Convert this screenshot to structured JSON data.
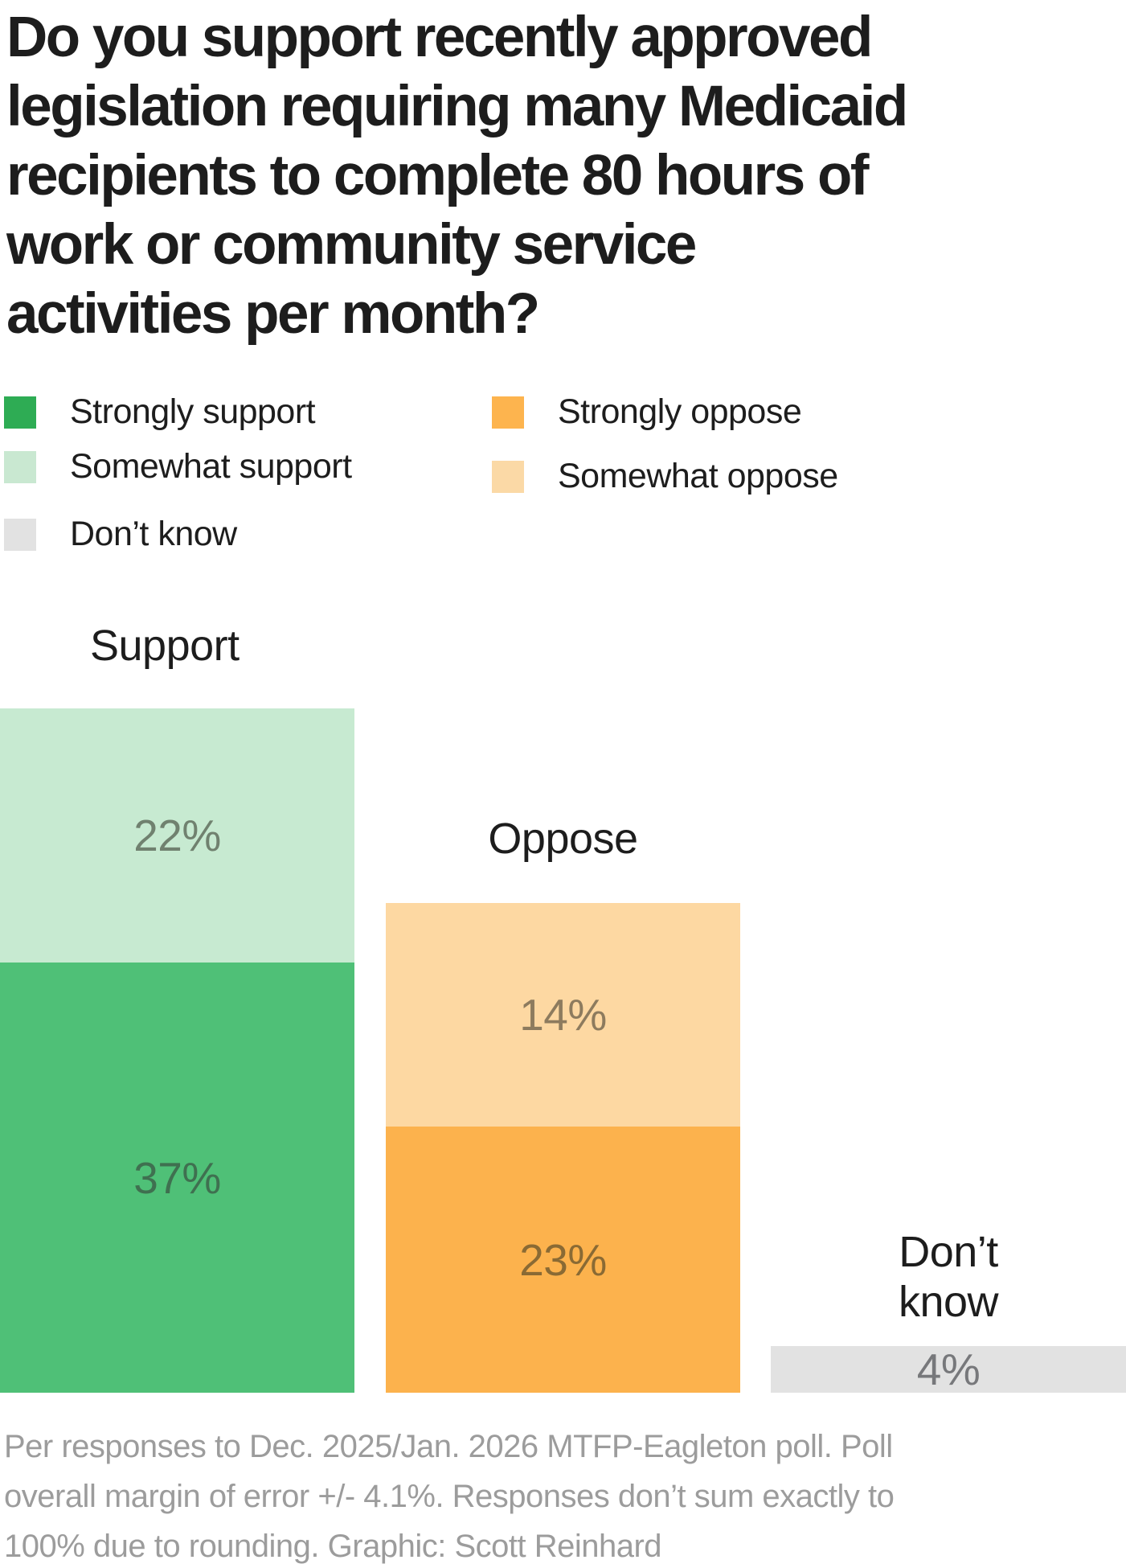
{
  "title": {
    "lines": [
      "Do you support recently approved",
      "legislation requiring many Medicaid",
      "recipients to complete 80 hours of",
      "work or community service",
      "activities per month?"
    ],
    "full_text": "Do you support recently approved legislation requiring many Medicaid recipients to complete 80 hours of work or community service activities per month?"
  },
  "legend": {
    "left": [
      {
        "label": "Strongly support",
        "color": "#2EAC54"
      },
      {
        "label": "Somewhat support",
        "color": "#C9E8D1"
      },
      {
        "label": "Don’t know",
        "color": "#E2E2E2"
      }
    ],
    "right": [
      {
        "label": "Strongly oppose",
        "color": "#FDB44E"
      },
      {
        "label": "Somewhat oppose",
        "color": "#FBD9A6"
      }
    ]
  },
  "bars": {
    "support": {
      "label": "Support",
      "segments": [
        {
          "name": "Somewhat support",
          "value_label": "22%",
          "color": "#C7EAD1",
          "label_color": "#70816F"
        },
        {
          "name": "Strongly support",
          "value_label": "37%",
          "color": "#4FC077",
          "label_color": "#3F7050"
        }
      ]
    },
    "oppose": {
      "label": "Oppose",
      "segments": [
        {
          "name": "Somewhat oppose",
          "value_label": "14%",
          "color": "#FDD8A2",
          "label_color": "#8D7B5E"
        },
        {
          "name": "Strongly oppose",
          "value_label": "23%",
          "color": "#FCB24D",
          "label_color": "#8A6A34"
        }
      ]
    },
    "dont_know": {
      "label": "Don’t\nknow",
      "segments": [
        {
          "name": "Don’t know",
          "value_label": "4%",
          "color": "#E2E2E2",
          "label_color": "#77787B"
        }
      ]
    }
  },
  "footer": {
    "lines": [
      "Per responses to Dec. 2025/Jan. 2026 MTFP-Eagleton poll. Poll",
      "overall margin of error +/- 4.1%. Responses don’t sum exactly to",
      "100% due to rounding. Graphic: Scott Reinhard"
    ],
    "full_text": "Per responses to Dec. 2025/Jan. 2026 MTFP-Eagleton poll. Poll overall margin of error +/- 4.1%. Responses don’t sum exactly to 100% due to rounding. Graphic: Scott Reinhard"
  },
  "chart_data": {
    "type": "bar",
    "stacked": true,
    "title": "Do you support recently approved legislation requiring many Medicaid recipients to complete 80 hours of work or community service activities per month?",
    "categories": [
      "Support",
      "Oppose",
      "Don’t know"
    ],
    "series": [
      {
        "name": "Strongly support",
        "values": [
          37,
          null,
          null
        ],
        "color": "#4FC077"
      },
      {
        "name": "Somewhat support",
        "values": [
          22,
          null,
          null
        ],
        "color": "#C7EAD1"
      },
      {
        "name": "Strongly oppose",
        "values": [
          null,
          23,
          null
        ],
        "color": "#FCB24D"
      },
      {
        "name": "Somewhat oppose",
        "values": [
          null,
          14,
          null
        ],
        "color": "#FDD8A2"
      },
      {
        "name": "Don’t know",
        "values": [
          null,
          null,
          4
        ],
        "color": "#E2E2E2"
      }
    ],
    "value_unit": "%",
    "grid": false,
    "axes_visible": false,
    "legend_position": "top-left",
    "note": "Per responses to Dec. 2025/Jan. 2026 MTFP-Eagleton poll. Poll overall margin of error +/- 4.1%. Responses don’t sum exactly to 100% due to rounding. Graphic: Scott Reinhard"
  }
}
